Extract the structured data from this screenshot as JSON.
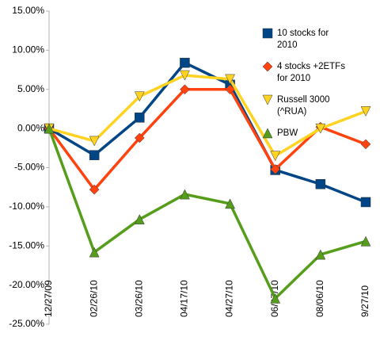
{
  "chart_data": {
    "type": "line",
    "categories": [
      "12/27/09",
      "02/26/10",
      "03/26/10",
      "04/17/10",
      "04/27/10",
      "06/27/10",
      "08/06/10",
      "9/27/10"
    ],
    "series": [
      {
        "name": "10 stocks for 2010",
        "color": "#004586",
        "marker": "square",
        "values": [
          0,
          -3.4,
          1.4,
          8.4,
          5.6,
          -5.3,
          -7.1,
          -9.4
        ]
      },
      {
        "name": "4 stocks +2ETFs for 2010",
        "color": "#ff420e",
        "marker": "diamond",
        "values": [
          0,
          -7.8,
          -1.2,
          5.0,
          5.0,
          -5.2,
          0.2,
          -2.0
        ]
      },
      {
        "name": "Russell 3000 (^RUA)",
        "color": "#ffd320",
        "marker": "triangle-down",
        "values": [
          0,
          -1.6,
          4.1,
          6.8,
          6.3,
          -3.5,
          0.0,
          2.2
        ]
      },
      {
        "name": "PBW",
        "color": "#579d1c",
        "marker": "triangle-up",
        "values": [
          0,
          -15.8,
          -11.6,
          -8.4,
          -9.6,
          -21.7,
          -16.1,
          -14.4
        ]
      }
    ],
    "ylim": [
      -25,
      15
    ],
    "yticks": [
      {
        "value": 15,
        "label": "15.00%"
      },
      {
        "value": 10,
        "label": "10.00%"
      },
      {
        "value": 5,
        "label": "5.00%"
      },
      {
        "value": 0,
        "label": "0.00%"
      },
      {
        "value": -5,
        "label": "-5.00%"
      },
      {
        "value": -10,
        "label": "-10.00%"
      },
      {
        "value": -15,
        "label": "-15.00%"
      },
      {
        "value": -20,
        "label": "-20.00%"
      },
      {
        "value": -25,
        "label": "-25.00%"
      }
    ],
    "grid": false,
    "legend": "top-right"
  }
}
